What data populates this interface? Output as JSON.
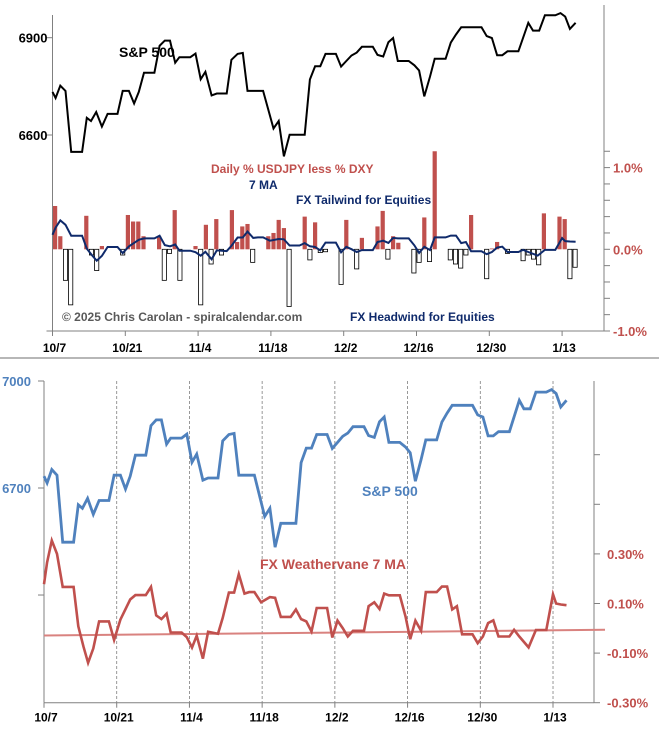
{
  "chart_data": [
    {
      "type": "bar+line",
      "title": "",
      "x_unit": "calendar days since 10/7",
      "x_ticks": [
        {
          "d": 0,
          "label": "10/7"
        },
        {
          "d": 14,
          "label": "10/21"
        },
        {
          "d": 28,
          "label": "11/4"
        },
        {
          "d": 42,
          "label": "11/18"
        },
        {
          "d": 56,
          "label": "12/2"
        },
        {
          "d": 70,
          "label": "12/16"
        },
        {
          "d": 84,
          "label": "12/30"
        },
        {
          "d": 98,
          "label": "1/13"
        }
      ],
      "left_axis": {
        "ticks": [
          {
            "v": 6900,
            "label": "6900"
          },
          {
            "v": 6600,
            "label": "6600"
          }
        ]
      },
      "right_axis": {
        "range": [
          -1.0,
          1.2
        ],
        "ticks": [
          {
            "v": 1.0,
            "label": "1.0%"
          },
          {
            "v": 0.0,
            "label": "0.0%"
          },
          {
            "v": -1.0,
            "label": "-1.0%"
          }
        ]
      },
      "annotations": {
        "sp500": "S&P 500",
        "bars_label": "Daily % USDJPY less % DXY",
        "ma_label": "7 MA",
        "tailwind": "FX Tailwind for Equities",
        "headwind": "FX Headwind for Equities",
        "copyright": "© 2025 Chris Carolan - spiralcalendar.com"
      },
      "colors": {
        "sp500": "#000000",
        "bar_pos": "#c0504d",
        "bar_neg": "#ffffff",
        "ma": "#0f2a6b",
        "right_axis": "#c0504d"
      },
      "bars_pct": [
        [
          0,
          0.53
        ],
        [
          1,
          0.16
        ],
        [
          2,
          -0.38
        ],
        [
          3,
          -0.68
        ],
        [
          6,
          0.41
        ],
        [
          7,
          -0.07
        ],
        [
          8,
          -0.26
        ],
        [
          9,
          0.04
        ],
        [
          13,
          -0.07
        ],
        [
          14,
          0.42
        ],
        [
          15,
          0.34
        ],
        [
          16,
          0.34
        ],
        [
          17,
          0.16
        ],
        [
          20,
          0.16
        ],
        [
          21,
          -0.38
        ],
        [
          22,
          -0.05
        ],
        [
          23,
          0.48
        ],
        [
          24,
          -0.38
        ],
        [
          27,
          0.04
        ],
        [
          28,
          -0.68
        ],
        [
          29,
          0.3
        ],
        [
          30,
          -0.18
        ],
        [
          31,
          0.37
        ],
        [
          32,
          -0.07
        ],
        [
          34,
          0.48
        ],
        [
          35,
          0.09
        ],
        [
          36,
          0.28
        ],
        [
          37,
          0.31
        ],
        [
          38,
          -0.16
        ],
        [
          41,
          0.16
        ],
        [
          42,
          0.2
        ],
        [
          43,
          0.36
        ],
        [
          44,
          0.26
        ],
        [
          45,
          -0.7
        ],
        [
          48,
          0.4
        ],
        [
          49,
          -0.13
        ],
        [
          50,
          0.33
        ],
        [
          51,
          -0.04
        ],
        [
          52,
          -0.03
        ],
        [
          55,
          -0.43
        ],
        [
          56,
          0.36
        ],
        [
          58,
          -0.24
        ],
        [
          59,
          0.14
        ],
        [
          62,
          0.28
        ],
        [
          63,
          0.47
        ],
        [
          64,
          -0.12
        ],
        [
          65,
          0.16
        ],
        [
          66,
          0.08
        ],
        [
          69,
          -0.29
        ],
        [
          70,
          -0.16
        ],
        [
          71,
          0.39
        ],
        [
          72,
          -0.15
        ],
        [
          73,
          1.2
        ],
        [
          76,
          -0.13
        ],
        [
          77,
          -0.18
        ],
        [
          78,
          -0.23
        ],
        [
          79,
          -0.07
        ],
        [
          80,
          0.42
        ],
        [
          83,
          -0.36
        ],
        [
          84,
          0.01
        ],
        [
          85,
          0.09
        ],
        [
          87,
          -0.05
        ],
        [
          90,
          -0.14
        ],
        [
          91,
          -0.07
        ],
        [
          92,
          -0.12
        ],
        [
          93,
          -0.19
        ],
        [
          94,
          0.44
        ],
        [
          97,
          0.4
        ],
        [
          98,
          0.37
        ],
        [
          99,
          -0.36
        ],
        [
          100,
          -0.22
        ]
      ]
    },
    {
      "type": "line",
      "title": "",
      "x_unit": "calendar days since 10/7",
      "x_ticks": [
        {
          "d": 0,
          "label": "10/7"
        },
        {
          "d": 14,
          "label": "10/21"
        },
        {
          "d": 28,
          "label": "11/4"
        },
        {
          "d": 42,
          "label": "11/18"
        },
        {
          "d": 56,
          "label": "12/2"
        },
        {
          "d": 70,
          "label": "12/16"
        },
        {
          "d": 84,
          "label": "12/30"
        },
        {
          "d": 98,
          "label": "1/13"
        }
      ],
      "grid": "dashed vertical at x ticks",
      "left_axis": {
        "ticks": [
          {
            "v": 7000,
            "label": "7000"
          },
          {
            "v": 6700,
            "label": "6700"
          },
          {
            "v": 6400,
            "label": ""
          }
        ]
      },
      "right_axis": {
        "range": [
          -0.3,
          0.7
        ],
        "ticks": [
          {
            "v": 0.3,
            "label": "0.30%"
          },
          {
            "v": 0.1,
            "label": "0.10%"
          },
          {
            "v": -0.1,
            "label": "-0.10%"
          },
          {
            "v": -0.3,
            "label": "-0.30%"
          }
        ]
      },
      "annotations": {
        "sp500": "S&P 500",
        "weathervane": "FX Weathervane 7 MA"
      },
      "colors": {
        "sp500": "#4f81bd",
        "weathervane": "#c0504d",
        "trend": "#d9827f",
        "left_axis": "#4f81bd",
        "right_axis": "#c0504d"
      },
      "trendline_pct": [
        [
          0,
          -0.029
        ],
        [
          108,
          -0.006
        ]
      ],
      "sp500": [
        [
          0,
          6733
        ],
        [
          0.6,
          6714
        ],
        [
          1.5,
          6752
        ],
        [
          2.5,
          6736
        ],
        [
          3.6,
          6548
        ],
        [
          5.7,
          6548
        ],
        [
          6.6,
          6653
        ],
        [
          7.4,
          6643
        ],
        [
          8.4,
          6671
        ],
        [
          9.5,
          6626
        ],
        [
          10.6,
          6665
        ],
        [
          12.5,
          6665
        ],
        [
          13.5,
          6736
        ],
        [
          14.7,
          6736
        ],
        [
          15.7,
          6697
        ],
        [
          16.6,
          6733
        ],
        [
          17.6,
          6792
        ],
        [
          19.6,
          6792
        ],
        [
          20.6,
          6875
        ],
        [
          21.6,
          6891
        ],
        [
          22.6,
          6891
        ],
        [
          23.6,
          6823
        ],
        [
          24.4,
          6840
        ],
        [
          26.5,
          6840
        ],
        [
          27.5,
          6851
        ],
        [
          28.5,
          6772
        ],
        [
          29.4,
          6795
        ],
        [
          30.6,
          6722
        ],
        [
          31.6,
          6728
        ],
        [
          33.5,
          6728
        ],
        [
          34.4,
          6832
        ],
        [
          35.6,
          6850
        ],
        [
          36.6,
          6853
        ],
        [
          37.5,
          6736
        ],
        [
          40.5,
          6736
        ],
        [
          42.5,
          6620
        ],
        [
          43.5,
          6643
        ],
        [
          44.5,
          6534
        ],
        [
          45.6,
          6601
        ],
        [
          48.5,
          6601
        ],
        [
          49.5,
          6771
        ],
        [
          50.5,
          6812
        ],
        [
          51.5,
          6812
        ],
        [
          52.5,
          6850
        ],
        [
          54.5,
          6850
        ],
        [
          55.5,
          6811
        ],
        [
          56.5,
          6828
        ],
        [
          57.5,
          6845
        ],
        [
          58.5,
          6854
        ],
        [
          59.5,
          6872
        ],
        [
          61.6,
          6872
        ],
        [
          62.5,
          6847
        ],
        [
          63.6,
          6842
        ],
        [
          64.6,
          6886
        ],
        [
          65.5,
          6899
        ],
        [
          66.4,
          6828
        ],
        [
          68.5,
          6828
        ],
        [
          69.6,
          6815
        ],
        [
          70.5,
          6799
        ],
        [
          71.5,
          6719
        ],
        [
          72.6,
          6780
        ],
        [
          73.5,
          6835
        ],
        [
          75.6,
          6835
        ],
        [
          76.6,
          6885
        ],
        [
          77.6,
          6910
        ],
        [
          78.6,
          6932
        ],
        [
          82.5,
          6932
        ],
        [
          83.5,
          6905
        ],
        [
          84.5,
          6899
        ],
        [
          85.5,
          6846
        ],
        [
          86.5,
          6846
        ],
        [
          87.5,
          6858
        ],
        [
          89.6,
          6858
        ],
        [
          91.5,
          6946
        ],
        [
          92.4,
          6922
        ],
        [
          93.6,
          6922
        ],
        [
          94.7,
          6969
        ],
        [
          96.7,
          6969
        ],
        [
          97.7,
          6976
        ],
        [
          98.6,
          6965
        ],
        [
          99.5,
          6927
        ],
        [
          100.6,
          6946
        ]
      ],
      "weathervane_pct": [
        [
          0,
          0.178
        ],
        [
          0.6,
          0.266
        ],
        [
          1.5,
          0.354
        ],
        [
          2.5,
          0.3
        ],
        [
          3.6,
          0.167
        ],
        [
          5.7,
          0.167
        ],
        [
          6.6,
          0.008
        ],
        [
          7.6,
          -0.074
        ],
        [
          8.5,
          -0.139
        ],
        [
          9.5,
          -0.081
        ],
        [
          10.6,
          0.028
        ],
        [
          12.5,
          0.028
        ],
        [
          13.5,
          -0.047
        ],
        [
          14.7,
          0.035
        ],
        [
          16.6,
          0.116
        ],
        [
          17.6,
          0.134
        ],
        [
          19.6,
          0.134
        ],
        [
          20.6,
          0.167
        ],
        [
          21.6,
          0.052
        ],
        [
          22.6,
          0.037
        ],
        [
          23.6,
          0.059
        ],
        [
          24.4,
          -0.017
        ],
        [
          26.5,
          -0.017
        ],
        [
          27.5,
          -0.036
        ],
        [
          28.5,
          -0.078
        ],
        [
          29.4,
          -0.03
        ],
        [
          30.6,
          -0.122
        ],
        [
          31.6,
          -0.014
        ],
        [
          33.5,
          -0.022
        ],
        [
          34.4,
          0.042
        ],
        [
          35.6,
          0.144
        ],
        [
          36.6,
          0.144
        ],
        [
          37.5,
          0.218
        ],
        [
          38.6,
          0.14
        ],
        [
          39.5,
          0.146
        ],
        [
          40.5,
          0.146
        ],
        [
          41.8,
          0.105
        ],
        [
          43.5,
          0.126
        ],
        [
          44.5,
          0.123
        ],
        [
          45.6,
          0.046
        ],
        [
          47.5,
          0.046
        ],
        [
          48.5,
          0.076
        ],
        [
          49.5,
          0.037
        ],
        [
          50.5,
          0.028
        ],
        [
          51.5,
          -0.013
        ],
        [
          52.5,
          0.082
        ],
        [
          54.5,
          0.082
        ],
        [
          55.5,
          -0.037
        ],
        [
          56.5,
          0.031
        ],
        [
          57.5,
          0.001
        ],
        [
          58.5,
          -0.033
        ],
        [
          59.5,
          -0.01
        ],
        [
          61.6,
          -0.01
        ],
        [
          62.5,
          0.089
        ],
        [
          63.6,
          0.105
        ],
        [
          64.6,
          0.078
        ],
        [
          65.5,
          0.14
        ],
        [
          66.4,
          0.133
        ],
        [
          68.5,
          0.133
        ],
        [
          69.6,
          0.048
        ],
        [
          70.5,
          -0.044
        ],
        [
          71.5,
          0.031
        ],
        [
          72.6,
          -0.01
        ],
        [
          73.5,
          0.146
        ],
        [
          75.6,
          0.146
        ],
        [
          76.6,
          0.168
        ],
        [
          77.6,
          0.168
        ],
        [
          78.6,
          0.076
        ],
        [
          79.5,
          0.089
        ],
        [
          80.5,
          -0.024
        ],
        [
          82.5,
          -0.024
        ],
        [
          83.5,
          -0.06
        ],
        [
          84.5,
          -0.033
        ],
        [
          85.5,
          0.021
        ],
        [
          86.5,
          0.032
        ],
        [
          87.5,
          -0.033
        ],
        [
          89.6,
          -0.033
        ],
        [
          90.5,
          -0.006
        ],
        [
          91.5,
          -0.033
        ],
        [
          93.3,
          -0.077
        ],
        [
          94.7,
          -0.007
        ],
        [
          96.7,
          -0.007
        ],
        [
          98,
          0.137
        ],
        [
          98.6,
          0.1
        ],
        [
          99.5,
          0.096
        ],
        [
          100.6,
          0.093
        ]
      ]
    }
  ]
}
